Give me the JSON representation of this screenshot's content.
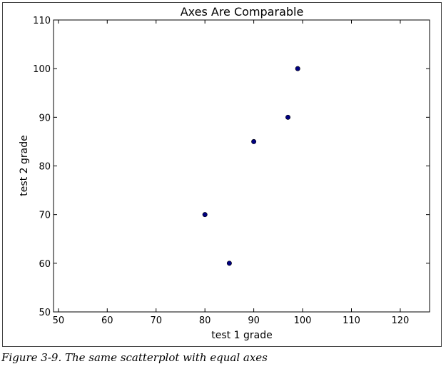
{
  "chart_data": {
    "type": "scatter",
    "title": "Axes Are Comparable",
    "xlabel": "test 1 grade",
    "ylabel": "test 2 grade",
    "xlim": [
      49,
      126
    ],
    "ylim": [
      50,
      110
    ],
    "xticks": [
      50,
      60,
      70,
      80,
      90,
      100,
      110,
      120
    ],
    "yticks": [
      50,
      60,
      70,
      80,
      90,
      100,
      110
    ],
    "grid": false,
    "marker_color": "#000080",
    "points": [
      {
        "x": 99,
        "y": 100
      },
      {
        "x": 97,
        "y": 90
      },
      {
        "x": 90,
        "y": 85
      },
      {
        "x": 80,
        "y": 70
      },
      {
        "x": 85,
        "y": 60
      }
    ]
  },
  "caption": "Figure 3-9. The same scatterplot with equal axes"
}
